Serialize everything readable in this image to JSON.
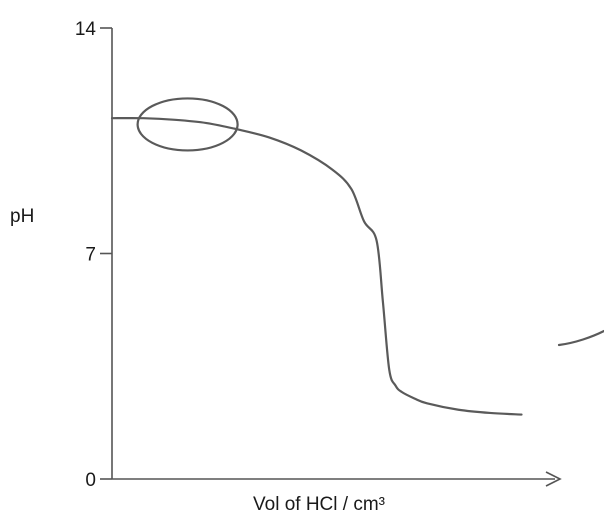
{
  "chart_data": {
    "type": "line",
    "title": "",
    "xlabel": "Vol of HCl / cm³",
    "ylabel": "pH",
    "ylim": [
      0,
      14
    ],
    "yticks": [
      {
        "value": 0,
        "label": "0"
      },
      {
        "value": 7,
        "label": "7"
      },
      {
        "value": 14,
        "label": "14"
      }
    ],
    "grid": false,
    "series": [
      {
        "x": [
          0,
          5,
          10,
          15,
          20,
          25,
          30,
          35,
          38,
          40,
          42,
          43,
          44,
          45,
          46,
          48,
          50,
          55,
          60,
          65
        ],
        "y": [
          11.2,
          11.2,
          11.15,
          11.05,
          10.85,
          10.6,
          10.2,
          9.6,
          9.0,
          8.0,
          7.4,
          5.5,
          3.4,
          2.9,
          2.7,
          2.5,
          2.35,
          2.15,
          2.05,
          2.0
        ]
      }
    ],
    "annotation": {
      "type": "ellipse",
      "x": 12,
      "y": 11.1
    }
  }
}
